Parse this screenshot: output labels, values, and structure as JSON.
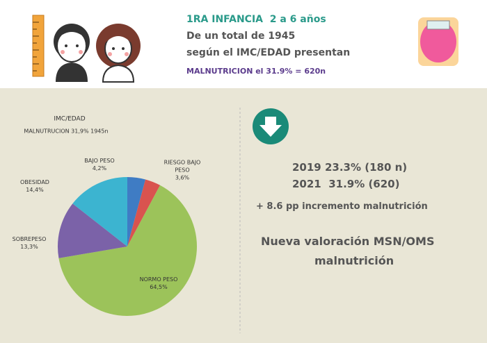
{
  "header": {
    "lines": [
      "1RA INFANCIA  2 a 6 años",
      "De un total de 1945",
      "según el IMC/EDAD presentan",
      "MALNUTRICION el 31.9% = 620n"
    ]
  },
  "chart_data": {
    "type": "pie",
    "title": "IMC/EDAD",
    "subtitle": "MALNUTRUCION 31,9% 1945n",
    "categories": [
      "BAJO PESO",
      "RIESGO BAJO PESO",
      "NORMO PESO",
      "SOBREPESO",
      "OBESIDAD"
    ],
    "values": [
      4.2,
      3.6,
      64.5,
      13.3,
      14.4
    ],
    "value_labels": [
      "4,2%",
      "3,6%",
      "64,5%",
      "13,3%",
      "14,4%"
    ],
    "colors": [
      "#3f7cc4",
      "#d9534f",
      "#9cc35a",
      "#7b62a8",
      "#3cb4d0"
    ]
  },
  "summary": {
    "lines": [
      "2019 23.3% (180 n)",
      "2021  31.9% (620)",
      "+ 8.6 pp incremento malnutrición"
    ],
    "note": [
      "Nueva valoración MSN/OMS",
      "malnutrición"
    ]
  }
}
